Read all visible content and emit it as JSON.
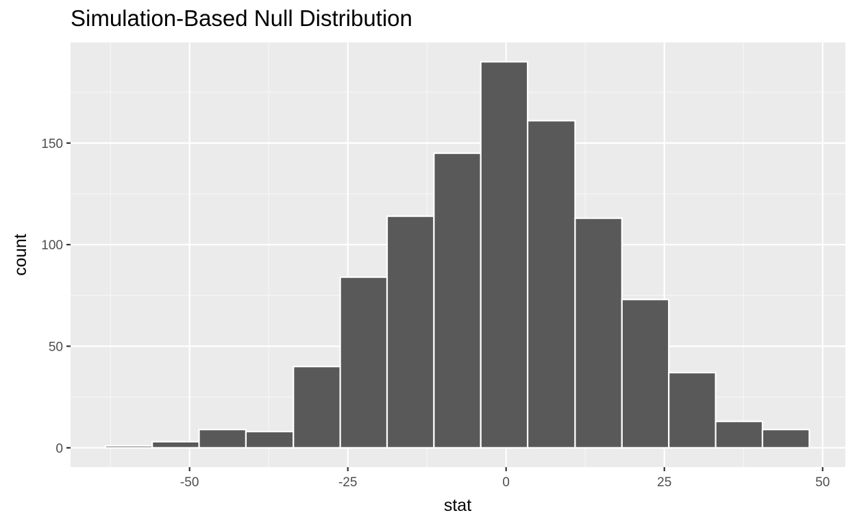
{
  "chart_data": {
    "type": "bar",
    "title": "Simulation-Based Null Distribution",
    "xlabel": "stat",
    "ylabel": "count",
    "xlim": [
      -68.8,
      53.6
    ],
    "ylim": [
      -9.5,
      199.5
    ],
    "x_ticks": [
      -50,
      -25,
      0,
      25,
      50
    ],
    "x_tick_labels": [
      "-50",
      "-25",
      "0",
      "25",
      "50"
    ],
    "y_ticks": [
      0,
      50,
      100,
      150
    ],
    "y_tick_labels": [
      "0",
      "50",
      "100",
      "150"
    ],
    "bin_width": 7.4,
    "bins": [
      {
        "x0": -63.3,
        "x1": -55.9,
        "count": 1
      },
      {
        "x0": -55.9,
        "x1": -48.5,
        "count": 3
      },
      {
        "x0": -48.5,
        "x1": -41.1,
        "count": 9
      },
      {
        "x0": -41.1,
        "x1": -33.6,
        "count": 8
      },
      {
        "x0": -33.6,
        "x1": -26.2,
        "count": 40
      },
      {
        "x0": -26.2,
        "x1": -18.8,
        "count": 84
      },
      {
        "x0": -18.8,
        "x1": -11.4,
        "count": 114
      },
      {
        "x0": -11.4,
        "x1": -4.0,
        "count": 145
      },
      {
        "x0": -4.0,
        "x1": 3.4,
        "count": 190
      },
      {
        "x0": 3.4,
        "x1": 10.9,
        "count": 161
      },
      {
        "x0": 10.9,
        "x1": 18.3,
        "count": 113
      },
      {
        "x0": 18.3,
        "x1": 25.7,
        "count": 73
      },
      {
        "x0": 25.7,
        "x1": 33.1,
        "count": 37
      },
      {
        "x0": 33.1,
        "x1": 40.5,
        "count": 13
      },
      {
        "x0": 40.5,
        "x1": 47.9,
        "count": 9
      }
    ],
    "grid": true,
    "legend": "none",
    "colors": {
      "panel_background": "#ebebeb",
      "grid_major": "#ffffff",
      "grid_minor": "#f7f7f7",
      "bar_fill": "#595959",
      "bar_outline": "#ffffff",
      "tick_text": "#4d4d4d",
      "tick_mark": "#333333"
    }
  }
}
